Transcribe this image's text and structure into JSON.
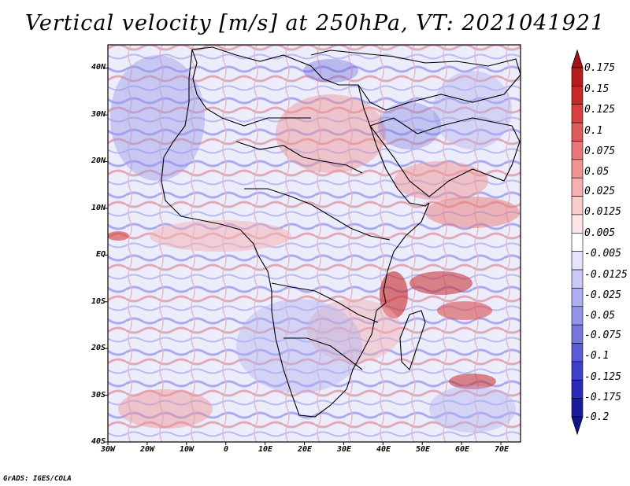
{
  "title": "Vertical velocity [m/s] at 250hPa, VT: 2021041921",
  "credit": "GrADS: IGES/COLA",
  "map": {
    "lon_range": [
      -30,
      75
    ],
    "lat_range": [
      -40,
      45
    ],
    "lon_ticks": [
      "30W",
      "20W",
      "10W",
      "0",
      "10E",
      "20E",
      "30E",
      "40E",
      "50E",
      "60E",
      "70E"
    ],
    "lat_ticks": [
      "40N",
      "30N",
      "20N",
      "10N",
      "EQ",
      "10S",
      "20S",
      "30S",
      "40S"
    ]
  },
  "colorbar": {
    "labels": [
      "0.175",
      "0.15",
      "0.125",
      "0.1",
      "0.075",
      "0.05",
      "0.025",
      "0.0125",
      "0.005",
      "-0.005",
      "-0.0125",
      "-0.025",
      "-0.05",
      "-0.075",
      "-0.1",
      "-0.125",
      "-0.175",
      "-0.2"
    ],
    "colors": [
      "#b71c1c",
      "#c62828",
      "#d84040",
      "#e05c5c",
      "#e87777",
      "#ef9393",
      "#f5b0b0",
      "#facbcb",
      "#fde6e6",
      "#ffffff",
      "#e4e4fb",
      "#c9c9f6",
      "#aeaef0",
      "#9393e8",
      "#7777e0",
      "#5b5bd6",
      "#3f3fca",
      "#2a2ab8",
      "#1a1a9e"
    ],
    "top_arrow_color": "#a11515",
    "bottom_arrow_color": "#15158a"
  }
}
